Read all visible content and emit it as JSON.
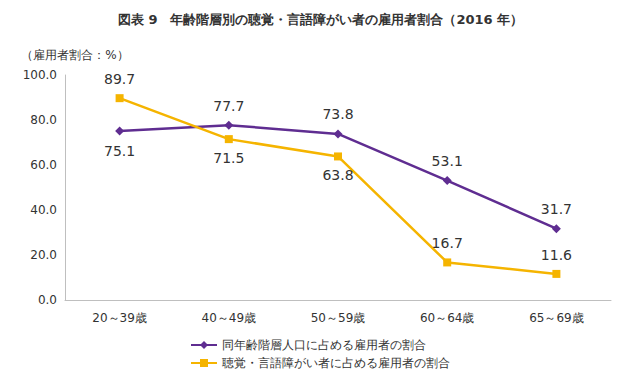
{
  "chart_data": {
    "type": "line",
    "title": "図表 9　年齢階層別の聴覚・言語障がい者の雇用者割合（2016 年）",
    "y_label": "（雇用者割合：%）",
    "categories": [
      "20～39歳",
      "40～49歳",
      "50～59歳",
      "60～64歳",
      "65～69歳"
    ],
    "series": [
      {
        "name": "同年齢階層人口に占める雇用者の割合",
        "color": "#5f2d91",
        "marker": "diamond",
        "values": [
          75.1,
          77.7,
          73.8,
          53.1,
          31.7
        ]
      },
      {
        "name": "聴覚・言語障がい者に占める雇用者の割合",
        "color": "#f5b400",
        "marker": "square",
        "values": [
          89.7,
          71.5,
          63.8,
          16.7,
          11.6
        ]
      }
    ],
    "ylim": [
      0,
      100
    ],
    "yticks": [
      {
        "value": 0,
        "label": "0.0"
      },
      {
        "value": 20,
        "label": "20.0"
      },
      {
        "value": 40,
        "label": "40.0"
      },
      {
        "value": 60,
        "label": "60.0"
      },
      {
        "value": 80,
        "label": "80.0"
      },
      {
        "value": 100,
        "label": "100.0"
      }
    ],
    "grid": false,
    "legend": "bottom",
    "data_labels": true
  }
}
